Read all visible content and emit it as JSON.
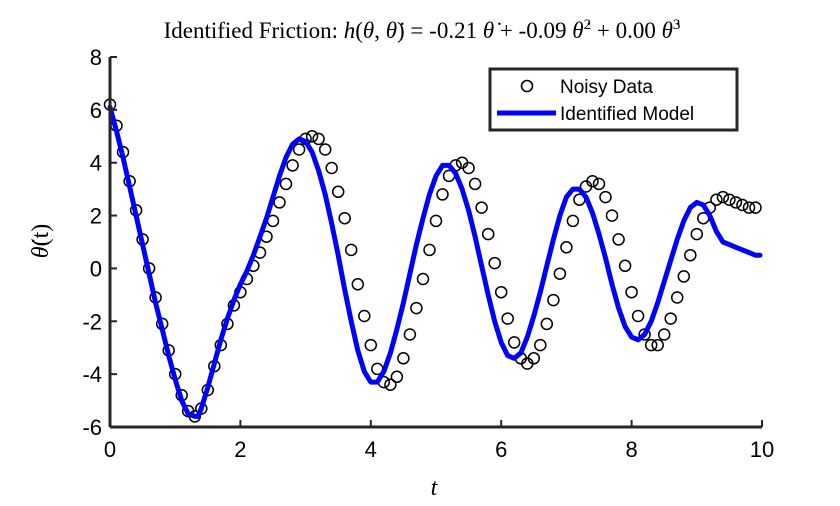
{
  "chart_data": {
    "type": "line",
    "title": "Identified Friction: h(θ, θ̇) = -0.21 θ̇ + -0.09 θ̇² + 0.00 θ̇³",
    "title_prefix": "Identified Friction: ",
    "title_h": "h",
    "title_theta": "θ",
    "title_comma": ", ",
    "title_equals": ") = ",
    "coef1": "-0.21",
    "coef2": "-0.09",
    "coef3": "0.00",
    "plus": "+",
    "pow2": "2",
    "pow3": "3",
    "xlabel": "t",
    "ylabel": "θ̇(t)",
    "ylabel_theta": "θ",
    "ylabel_suffix": "(t)",
    "xlim": [
      0,
      10
    ],
    "ylim": [
      -6,
      8
    ],
    "xticks": [
      "0",
      "2",
      "4",
      "6",
      "8",
      "10"
    ],
    "yticks": [
      "-6",
      "-4",
      "-2",
      "0",
      "2",
      "4",
      "6",
      "8"
    ],
    "grid": false,
    "legend_position": "top-right",
    "series": [
      {
        "name": "Noisy Data",
        "style": "markers",
        "marker": "open-circle",
        "color": "#000000",
        "x": [
          0,
          0.1,
          0.2,
          0.3,
          0.4,
          0.5,
          0.6,
          0.7,
          0.8,
          0.9,
          1.0,
          1.1,
          1.2,
          1.3,
          1.4,
          1.5,
          1.6,
          1.7,
          1.8,
          1.9,
          2.0,
          2.1,
          2.2,
          2.3,
          2.4,
          2.5,
          2.6,
          2.7,
          2.8,
          2.9,
          3.0,
          3.1,
          3.2,
          3.3,
          3.4,
          3.5,
          3.6,
          3.7,
          3.8,
          3.9,
          4.0,
          4.1,
          4.2,
          4.3,
          4.4,
          4.5,
          4.6,
          4.7,
          4.8,
          4.9,
          5.0,
          5.1,
          5.2,
          5.3,
          5.4,
          5.5,
          5.6,
          5.7,
          5.8,
          5.9,
          6.0,
          6.1,
          6.2,
          6.3,
          6.4,
          6.5,
          6.6,
          6.7,
          6.8,
          6.9,
          7.0,
          7.1,
          7.2,
          7.3,
          7.4,
          7.5,
          7.6,
          7.7,
          7.8,
          7.9,
          8.0,
          8.1,
          8.2,
          8.3,
          8.4,
          8.5,
          8.6,
          8.7,
          8.8,
          8.9,
          9.0,
          9.1,
          9.2,
          9.3,
          9.4,
          9.5,
          9.6,
          9.7,
          9.8,
          9.9
        ],
        "y": [
          6.2,
          5.4,
          4.4,
          3.3,
          2.2,
          1.1,
          0.0,
          -1.1,
          -2.1,
          -3.1,
          -4.0,
          -4.8,
          -5.4,
          -5.6,
          -5.3,
          -4.6,
          -3.7,
          -2.9,
          -2.1,
          -1.4,
          -0.9,
          -0.4,
          0.1,
          0.6,
          1.2,
          1.8,
          2.5,
          3.2,
          3.9,
          4.5,
          4.9,
          5.0,
          4.9,
          4.5,
          3.8,
          2.9,
          1.9,
          0.7,
          -0.6,
          -1.8,
          -2.9,
          -3.8,
          -4.3,
          -4.4,
          -4.1,
          -3.4,
          -2.5,
          -1.5,
          -0.4,
          0.7,
          1.8,
          2.8,
          3.5,
          3.9,
          4.0,
          3.8,
          3.2,
          2.3,
          1.3,
          0.2,
          -0.9,
          -1.9,
          -2.8,
          -3.4,
          -3.6,
          -3.4,
          -2.9,
          -2.1,
          -1.2,
          -0.2,
          0.8,
          1.8,
          2.6,
          3.1,
          3.3,
          3.2,
          2.7,
          2.0,
          1.1,
          0.1,
          -0.9,
          -1.8,
          -2.5,
          -2.9,
          -2.9,
          -2.5,
          -1.9,
          -1.1,
          -0.3,
          0.5,
          1.3,
          1.9,
          2.3,
          2.6,
          2.7,
          2.6,
          2.5,
          2.4,
          2.3,
          2.3
        ]
      },
      {
        "name": "Identified Model",
        "style": "line",
        "color": "#0000ff",
        "x": [
          0,
          0.1,
          0.2,
          0.3,
          0.4,
          0.5,
          0.6,
          0.7,
          0.8,
          0.9,
          1.0,
          1.1,
          1.2,
          1.3,
          1.35,
          1.4,
          1.5,
          1.6,
          1.7,
          1.8,
          1.9,
          2.0,
          2.1,
          2.2,
          2.3,
          2.4,
          2.5,
          2.6,
          2.7,
          2.8,
          2.9,
          3.0,
          3.1,
          3.2,
          3.3,
          3.4,
          3.5,
          3.6,
          3.7,
          3.8,
          3.9,
          4.0,
          4.1,
          4.2,
          4.3,
          4.4,
          4.5,
          4.6,
          4.7,
          4.8,
          4.9,
          5.0,
          5.1,
          5.2,
          5.3,
          5.4,
          5.5,
          5.6,
          5.7,
          5.8,
          5.9,
          6.0,
          6.1,
          6.2,
          6.3,
          6.4,
          6.5,
          6.6,
          6.7,
          6.8,
          6.9,
          7.0,
          7.1,
          7.2,
          7.3,
          7.4,
          7.5,
          7.6,
          7.7,
          7.8,
          7.9,
          8.0,
          8.1,
          8.2,
          8.3,
          8.4,
          8.5,
          8.6,
          8.7,
          8.8,
          8.9,
          9.0,
          9.1,
          9.2,
          9.3,
          9.4,
          9.5,
          9.6,
          9.7,
          9.8,
          9.9,
          9.97
        ],
        "y": [
          6.1,
          5.2,
          4.2,
          3.1,
          2.0,
          0.9,
          -0.2,
          -1.3,
          -2.3,
          -3.3,
          -4.2,
          -5.0,
          -5.5,
          -5.6,
          -5.6,
          -5.3,
          -4.5,
          -3.6,
          -2.7,
          -1.9,
          -1.2,
          -0.6,
          -0.1,
          0.5,
          1.2,
          1.9,
          2.7,
          3.5,
          4.2,
          4.7,
          4.9,
          4.8,
          4.4,
          3.7,
          2.8,
          1.7,
          0.5,
          -0.8,
          -2.0,
          -3.1,
          -3.9,
          -4.3,
          -4.3,
          -3.9,
          -3.2,
          -2.3,
          -1.3,
          -0.2,
          0.9,
          1.9,
          2.8,
          3.5,
          3.9,
          3.9,
          3.6,
          3.0,
          2.2,
          1.2,
          0.1,
          -1.0,
          -2.0,
          -2.8,
          -3.3,
          -3.4,
          -3.2,
          -2.6,
          -1.8,
          -0.9,
          0.1,
          1.1,
          2.0,
          2.7,
          3.0,
          3.0,
          2.7,
          2.1,
          1.3,
          0.4,
          -0.6,
          -1.5,
          -2.2,
          -2.6,
          -2.7,
          -2.5,
          -2.0,
          -1.3,
          -0.5,
          0.3,
          1.1,
          1.8,
          2.3,
          2.5,
          2.4,
          2.0,
          1.4,
          1.0,
          0.9,
          0.8,
          0.7,
          0.6,
          0.5,
          0.5
        ]
      }
    ]
  }
}
